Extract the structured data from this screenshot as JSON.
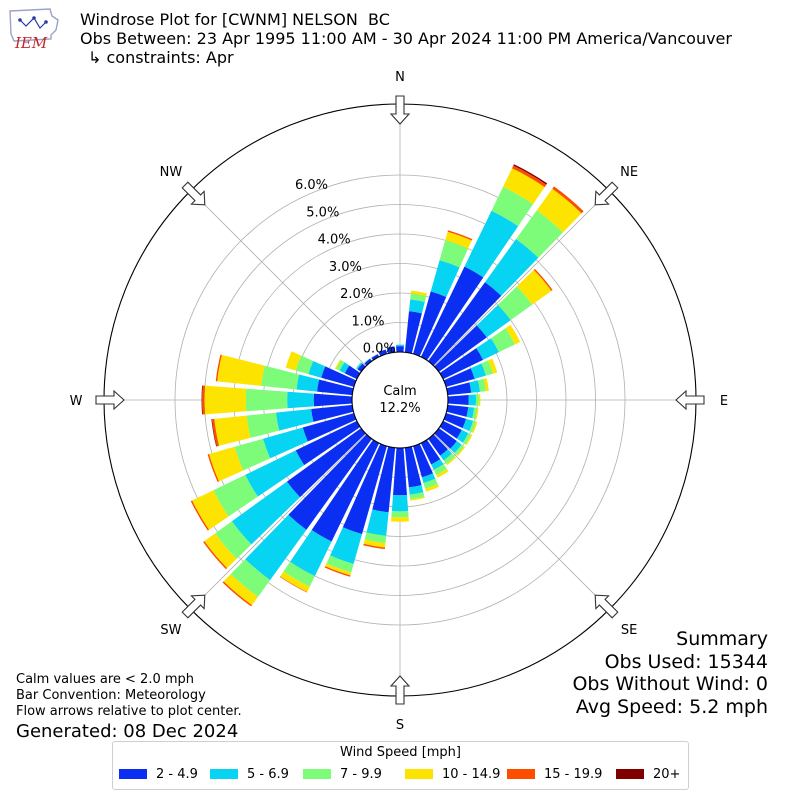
{
  "header": {
    "title": "Windrose Plot for [CWNM] NELSON  BC",
    "obs_between": "Obs Between: 23 Apr 1995 11:00 AM - 30 Apr 2024 11:00 PM America/Vancouver",
    "constraints": "↳ constraints: Apr"
  },
  "logo_text": "IEM",
  "notes": {
    "line1": "Calm values are < 2.0 mph",
    "line2": "Bar Convention: Meteorology",
    "line3": "Flow arrows relative to plot center.",
    "generated": "Generated: 08 Dec 2024"
  },
  "summary": {
    "title": "Summary",
    "obs_used": "Obs Used: 15344",
    "obs_without_wind": "Obs Without Wind: 0",
    "avg_speed": "Avg Speed: 5.2 mph"
  },
  "colors": {
    "speed_bins": [
      "#0b2ff2",
      "#06d4f2",
      "#7dfc7a",
      "#fde300",
      "#fd4e00",
      "#800000"
    ]
  },
  "chart_data": {
    "type": "windrose",
    "calm_label": "Calm",
    "calm_value": "12.2%",
    "calm_percent": 12.2,
    "radial_ticks": [
      0.0,
      1.0,
      2.0,
      3.0,
      4.0,
      5.0,
      6.0
    ],
    "radial_tick_labels": [
      "0.0%",
      "1.0%",
      "2.0%",
      "3.0%",
      "4.0%",
      "5.0%",
      "6.0%"
    ],
    "direction_labels": [
      "N",
      "NE",
      "E",
      "SE",
      "S",
      "SW",
      "W",
      "NW"
    ],
    "legend_title": "Wind Speed [mph]",
    "bins": [
      "2 - 4.9",
      "5 - 6.9",
      "7 - 9.9",
      "10 - 14.9",
      "15 - 19.9",
      "20+"
    ],
    "directions_deg": [
      0,
      10,
      20,
      30,
      40,
      50,
      60,
      70,
      80,
      90,
      100,
      110,
      120,
      130,
      140,
      150,
      160,
      170,
      180,
      190,
      200,
      210,
      220,
      230,
      240,
      250,
      260,
      270,
      280,
      290,
      300,
      310,
      320,
      330,
      340,
      350
    ],
    "cumulative_percent": [
      [
        0.2,
        0.25,
        0.25,
        0.25,
        0.25,
        0.25
      ],
      [
        1.4,
        1.8,
        2.0,
        2.1,
        2.1,
        2.1
      ],
      [
        2.2,
        3.3,
        4.0,
        4.3,
        4.35,
        4.35
      ],
      [
        3.4,
        5.5,
        6.4,
        7.1,
        7.2,
        7.25
      ],
      [
        3.3,
        5.1,
        6.3,
        7.2,
        7.3,
        7.3
      ],
      [
        2.0,
        3.0,
        3.9,
        4.7,
        4.75,
        4.75
      ],
      [
        1.5,
        2.1,
        2.7,
        2.9,
        2.9,
        2.9
      ],
      [
        1.0,
        1.4,
        1.65,
        1.8,
        1.8,
        1.8
      ],
      [
        0.8,
        1.1,
        1.3,
        1.4,
        1.4,
        1.4
      ],
      [
        0.7,
        0.95,
        1.05,
        1.1,
        1.1,
        1.1
      ],
      [
        0.7,
        0.9,
        1.0,
        1.05,
        1.05,
        1.05
      ],
      [
        0.7,
        0.95,
        1.05,
        1.1,
        1.1,
        1.1
      ],
      [
        0.7,
        0.95,
        1.05,
        1.1,
        1.1,
        1.1
      ],
      [
        0.75,
        0.95,
        1.05,
        1.1,
        1.1,
        1.1
      ],
      [
        0.7,
        0.9,
        1.05,
        1.1,
        1.1,
        1.1
      ],
      [
        0.8,
        1.0,
        1.2,
        1.3,
        1.3,
        1.3
      ],
      [
        1.1,
        1.3,
        1.5,
        1.6,
        1.6,
        1.6
      ],
      [
        1.35,
        1.6,
        1.75,
        1.8,
        1.8,
        1.8
      ],
      [
        1.6,
        2.15,
        2.35,
        2.5,
        2.5,
        2.5
      ],
      [
        2.2,
        3.0,
        3.25,
        3.4,
        3.45,
        3.45
      ],
      [
        3.1,
        4.15,
        4.45,
        4.55,
        4.6,
        4.6
      ],
      [
        3.7,
        5.0,
        5.4,
        5.6,
        5.62,
        5.62
      ],
      [
        3.8,
        5.9,
        6.6,
        6.95,
        7.0,
        7.0
      ],
      [
        3.1,
        5.4,
        6.1,
        6.55,
        6.6,
        6.6
      ],
      [
        2.3,
        4.2,
        5.4,
        6.2,
        6.25,
        6.25
      ],
      [
        1.8,
        3.2,
        4.2,
        5.1,
        5.15,
        5.15
      ],
      [
        1.4,
        2.6,
        3.6,
        4.7,
        4.78,
        4.8
      ],
      [
        1.3,
        2.2,
        3.6,
        5.0,
        5.08,
        5.1
      ],
      [
        1.2,
        1.9,
        3.1,
        4.6,
        4.65,
        4.65
      ],
      [
        1.15,
        1.6,
        2.05,
        2.4,
        2.4,
        2.4
      ],
      [
        0.45,
        0.65,
        0.78,
        0.82,
        0.82,
        0.82
      ],
      [
        0.15,
        0.2,
        0.22,
        0.22,
        0.22,
        0.22
      ],
      [
        0.1,
        0.12,
        0.12,
        0.12,
        0.12,
        0.12
      ],
      [
        0.1,
        0.1,
        0.1,
        0.1,
        0.1,
        0.1
      ],
      [
        0.15,
        0.15,
        0.15,
        0.15,
        0.15,
        0.15
      ],
      [
        0.2,
        0.2,
        0.2,
        0.2,
        0.2,
        0.2
      ]
    ]
  }
}
